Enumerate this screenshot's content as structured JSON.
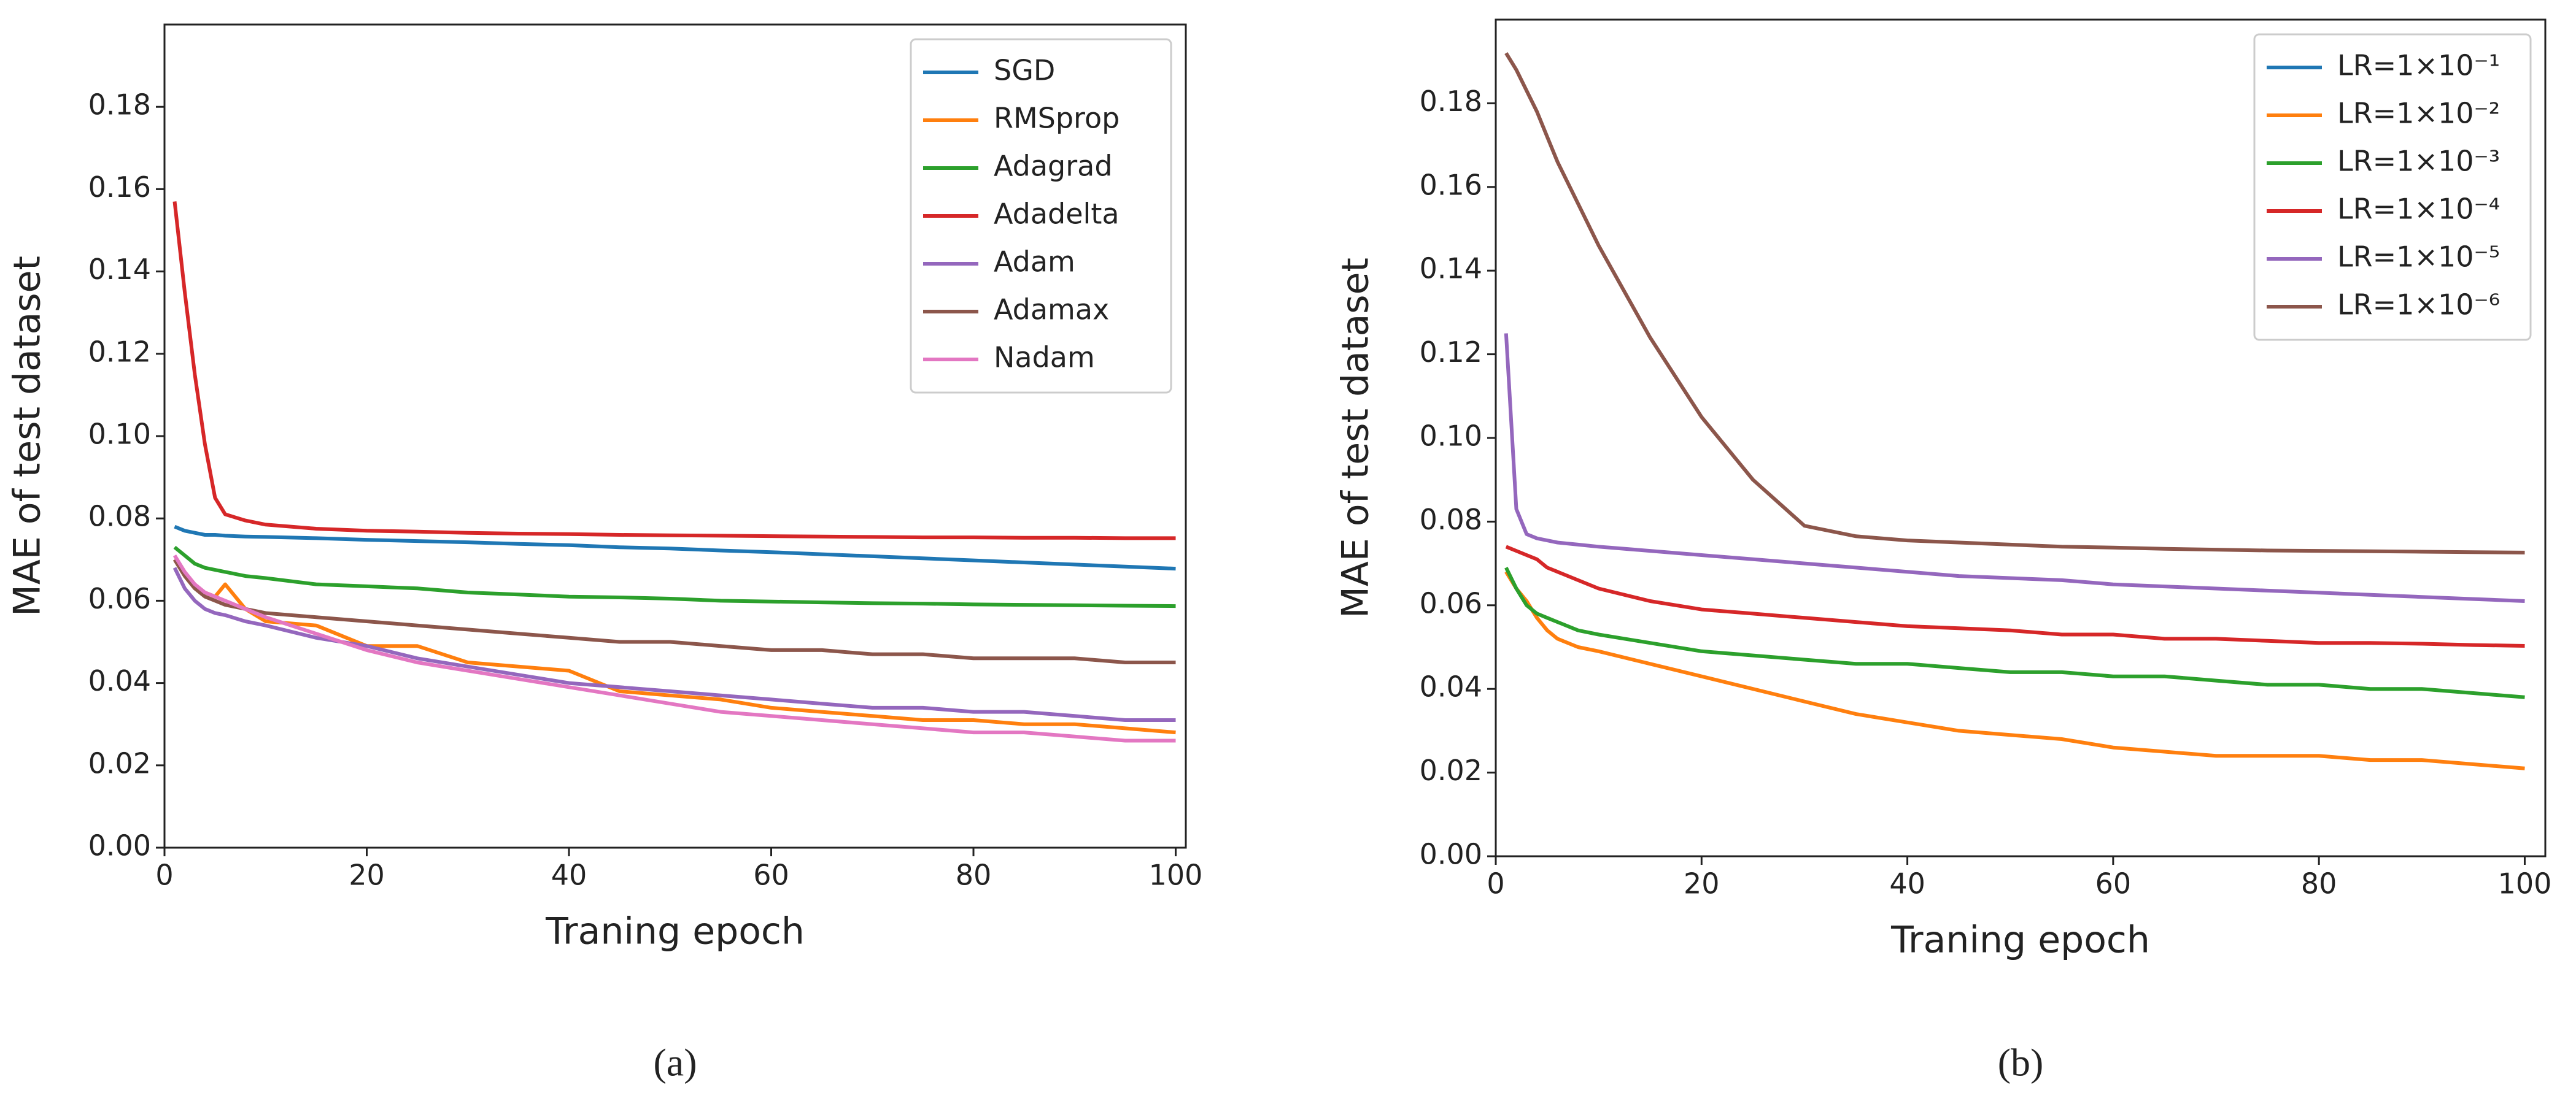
{
  "chart_data": [
    {
      "type": "line",
      "panel_label": "(a)",
      "xlabel": "Traning epoch",
      "ylabel": "MAE of test dataset",
      "x": [
        1,
        2,
        3,
        4,
        5,
        6,
        8,
        10,
        15,
        20,
        25,
        30,
        35,
        40,
        45,
        50,
        55,
        60,
        65,
        70,
        75,
        80,
        85,
        90,
        95,
        100
      ],
      "xlim": [
        0,
        101
      ],
      "ylim": [
        0,
        0.2
      ],
      "xticks": [
        0,
        20,
        40,
        60,
        80,
        100
      ],
      "yticks": [
        {
          "value": 0,
          "label": "0.00"
        },
        {
          "value": 0.02,
          "label": "0.02"
        },
        {
          "value": 0.04,
          "label": "0.04"
        },
        {
          "value": 0.06,
          "label": "0.06"
        },
        {
          "value": 0.08,
          "label": "0.08"
        },
        {
          "value": 0.1,
          "label": "0.10"
        },
        {
          "value": 0.12,
          "label": "0.12"
        },
        {
          "value": 0.14,
          "label": "0.14"
        },
        {
          "value": 0.16,
          "label": "0.16"
        },
        {
          "value": 0.18,
          "label": "0.18"
        }
      ],
      "legend": "upper right",
      "series": [
        {
          "name": "SGD",
          "color": "#1f77b4",
          "values": [
            0.078,
            0.077,
            0.0765,
            0.076,
            0.076,
            0.0758,
            0.0756,
            0.0755,
            0.0752,
            0.0748,
            0.0745,
            0.0742,
            0.0738,
            0.0735,
            0.073,
            0.0727,
            0.0722,
            0.0718,
            0.0713,
            0.0708,
            0.0703,
            0.0698,
            0.0693,
            0.0688,
            0.0683,
            0.0678
          ]
        },
        {
          "name": "RMSprop",
          "color": "#ff7f0e",
          "values": [
            0.07,
            0.066,
            0.063,
            0.062,
            0.061,
            0.064,
            0.058,
            0.055,
            0.054,
            0.049,
            0.049,
            0.045,
            0.044,
            0.043,
            0.038,
            0.037,
            0.036,
            0.034,
            0.033,
            0.032,
            0.031,
            0.031,
            0.03,
            0.03,
            0.029,
            0.028
          ]
        },
        {
          "name": "Adagrad",
          "color": "#2ca02c",
          "values": [
            0.073,
            0.071,
            0.069,
            0.068,
            0.0675,
            0.067,
            0.066,
            0.0655,
            0.064,
            0.0635,
            0.063,
            0.062,
            0.0615,
            0.061,
            0.0608,
            0.0605,
            0.06,
            0.0598,
            0.0596,
            0.0594,
            0.0593,
            0.0591,
            0.059,
            0.0589,
            0.0588,
            0.0587
          ]
        },
        {
          "name": "Adadelta",
          "color": "#d62728",
          "values": [
            0.157,
            0.135,
            0.115,
            0.098,
            0.085,
            0.081,
            0.0795,
            0.0785,
            0.0775,
            0.077,
            0.0768,
            0.0765,
            0.0763,
            0.0762,
            0.076,
            0.0759,
            0.0758,
            0.0757,
            0.0756,
            0.0755,
            0.0754,
            0.0754,
            0.0753,
            0.0753,
            0.0752,
            0.0752
          ]
        },
        {
          "name": "Adam",
          "color": "#9467bd",
          "values": [
            0.068,
            0.063,
            0.06,
            0.058,
            0.057,
            0.0565,
            0.055,
            0.054,
            0.051,
            0.049,
            0.046,
            0.044,
            0.042,
            0.04,
            0.039,
            0.038,
            0.037,
            0.036,
            0.035,
            0.034,
            0.034,
            0.033,
            0.033,
            0.032,
            0.031,
            0.031
          ]
        },
        {
          "name": "Adamax",
          "color": "#8c564b",
          "values": [
            0.07,
            0.066,
            0.063,
            0.061,
            0.06,
            0.059,
            0.058,
            0.057,
            0.056,
            0.055,
            0.054,
            0.053,
            0.052,
            0.051,
            0.05,
            0.05,
            0.049,
            0.048,
            0.048,
            0.047,
            0.047,
            0.046,
            0.046,
            0.046,
            0.045,
            0.045
          ]
        },
        {
          "name": "Nadam",
          "color": "#e377c2",
          "values": [
            0.071,
            0.067,
            0.064,
            0.062,
            0.061,
            0.06,
            0.058,
            0.056,
            0.052,
            0.048,
            0.045,
            0.043,
            0.041,
            0.039,
            0.037,
            0.035,
            0.033,
            0.032,
            0.031,
            0.03,
            0.029,
            0.028,
            0.028,
            0.027,
            0.026,
            0.026
          ]
        }
      ]
    },
    {
      "type": "line",
      "panel_label": "(b)",
      "xlabel": "Traning epoch",
      "ylabel": "MAE of test dataset",
      "x": [
        1,
        2,
        3,
        4,
        5,
        6,
        8,
        10,
        15,
        20,
        25,
        30,
        35,
        40,
        45,
        50,
        55,
        60,
        65,
        70,
        75,
        80,
        85,
        90,
        95,
        100
      ],
      "xlim": [
        0,
        102
      ],
      "ylim": [
        0,
        0.2
      ],
      "xticks": [
        0,
        20,
        40,
        60,
        80,
        100
      ],
      "yticks": [
        {
          "value": 0,
          "label": "0.00"
        },
        {
          "value": 0.02,
          "label": "0.02"
        },
        {
          "value": 0.04,
          "label": "0.04"
        },
        {
          "value": 0.06,
          "label": "0.06"
        },
        {
          "value": 0.08,
          "label": "0.08"
        },
        {
          "value": 0.1,
          "label": "0.10"
        },
        {
          "value": 0.12,
          "label": "0.12"
        },
        {
          "value": 0.14,
          "label": "0.14"
        },
        {
          "value": 0.16,
          "label": "0.16"
        },
        {
          "value": 0.18,
          "label": "0.18"
        }
      ],
      "legend": "upper right",
      "series": [
        {
          "name": "LR=1×10⁻¹",
          "color": "#1f77b4",
          "values": [
            null,
            null,
            null,
            null,
            null,
            null,
            null,
            null,
            null,
            null,
            null,
            null,
            null,
            null,
            null,
            null,
            null,
            null,
            null,
            null,
            null,
            null,
            null,
            null,
            null,
            null
          ]
        },
        {
          "name": "LR=1×10⁻²",
          "color": "#ff7f0e",
          "values": [
            0.068,
            0.064,
            0.061,
            0.057,
            0.054,
            0.052,
            0.05,
            0.049,
            0.046,
            0.043,
            0.04,
            0.037,
            0.034,
            0.032,
            0.03,
            0.029,
            0.028,
            0.026,
            0.025,
            0.024,
            0.024,
            0.024,
            0.023,
            0.023,
            0.022,
            0.021
          ]
        },
        {
          "name": "LR=1×10⁻³",
          "color": "#2ca02c",
          "values": [
            0.069,
            0.064,
            0.06,
            0.058,
            0.057,
            0.056,
            0.054,
            0.053,
            0.051,
            0.049,
            0.048,
            0.047,
            0.046,
            0.046,
            0.045,
            0.044,
            0.044,
            0.043,
            0.043,
            0.042,
            0.041,
            0.041,
            0.04,
            0.04,
            0.039,
            0.038
          ]
        },
        {
          "name": "LR=1×10⁻⁴",
          "color": "#d62728",
          "values": [
            0.074,
            0.073,
            0.072,
            0.071,
            0.069,
            0.068,
            0.066,
            0.064,
            0.061,
            0.059,
            0.058,
            0.057,
            0.056,
            0.055,
            0.0545,
            0.054,
            0.053,
            0.053,
            0.052,
            0.052,
            0.0515,
            0.051,
            0.051,
            0.0508,
            0.0505,
            0.0503
          ]
        },
        {
          "name": "LR=1×10⁻⁵",
          "color": "#9467bd",
          "values": [
            0.125,
            0.083,
            0.077,
            0.076,
            0.0755,
            0.075,
            0.0745,
            0.074,
            0.073,
            0.072,
            0.071,
            0.07,
            0.069,
            0.068,
            0.067,
            0.0665,
            0.066,
            0.065,
            0.0645,
            0.064,
            0.0635,
            0.063,
            0.0625,
            0.062,
            0.0615,
            0.061
          ]
        },
        {
          "name": "LR=1×10⁻⁶",
          "color": "#8c564b",
          "values": [
            0.192,
            0.188,
            0.183,
            0.178,
            0.172,
            0.166,
            0.156,
            0.146,
            0.124,
            0.105,
            0.09,
            0.079,
            0.0765,
            0.0755,
            0.075,
            0.0745,
            0.074,
            0.0738,
            0.0735,
            0.0733,
            0.0731,
            0.073,
            0.0729,
            0.0728,
            0.0727,
            0.0726
          ]
        }
      ]
    }
  ]
}
